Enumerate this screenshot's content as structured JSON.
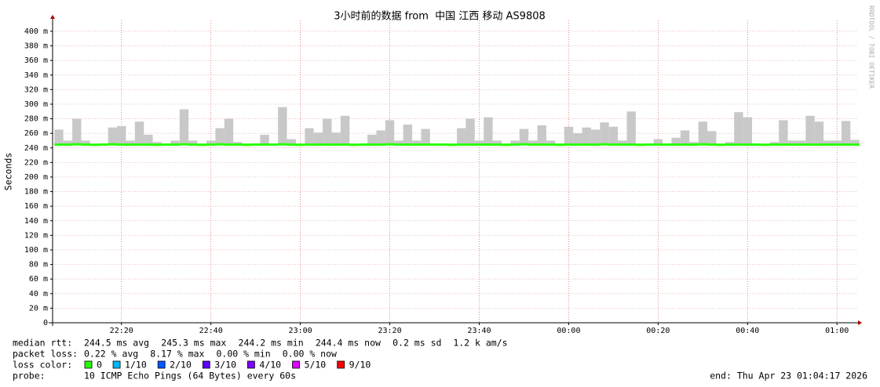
{
  "chart_data": {
    "type": "smokeping",
    "title": "3小时前的数据 from  中国 江西 移动 AS9808",
    "y_label": "Seconds",
    "watermark": "RRDTOOL / TOBI OETIKER",
    "ylim": [
      0,
      0.415
    ],
    "yticks": [
      {
        "value": 0,
        "label": "0"
      },
      {
        "value": 0.02,
        "label": "20 m"
      },
      {
        "value": 0.04,
        "label": "40 m"
      },
      {
        "value": 0.06,
        "label": "60 m"
      },
      {
        "value": 0.08,
        "label": "80 m"
      },
      {
        "value": 0.1,
        "label": "100 m"
      },
      {
        "value": 0.12,
        "label": "120 m"
      },
      {
        "value": 0.14,
        "label": "140 m"
      },
      {
        "value": 0.16,
        "label": "160 m"
      },
      {
        "value": 0.18,
        "label": "180 m"
      },
      {
        "value": 0.2,
        "label": "200 m"
      },
      {
        "value": 0.22,
        "label": "220 m"
      },
      {
        "value": 0.24,
        "label": "240 m"
      },
      {
        "value": 0.26,
        "label": "260 m"
      },
      {
        "value": 0.28,
        "label": "280 m"
      },
      {
        "value": 0.3,
        "label": "300 m"
      },
      {
        "value": 0.32,
        "label": "320 m"
      },
      {
        "value": 0.34,
        "label": "340 m"
      },
      {
        "value": 0.36,
        "label": "360 m"
      },
      {
        "value": 0.38,
        "label": "380 m"
      },
      {
        "value": 0.4,
        "label": "400 m"
      }
    ],
    "xlim": [
      1324.6,
      1504.7
    ],
    "xticks": [
      {
        "value": 1340,
        "label": "22:20"
      },
      {
        "value": 1360,
        "label": "22:40"
      },
      {
        "value": 1380,
        "label": "23:00"
      },
      {
        "value": 1400,
        "label": "23:20"
      },
      {
        "value": 1420,
        "label": "23:40"
      },
      {
        "value": 1440,
        "label": "00:00"
      },
      {
        "value": 1460,
        "label": "00:20"
      },
      {
        "value": 1480,
        "label": "00:40"
      },
      {
        "value": 1500,
        "label": "01:00"
      }
    ],
    "grid": true,
    "x": [
      1325,
      1327,
      1329,
      1331,
      1333,
      1335,
      1337,
      1339,
      1341,
      1343,
      1345,
      1347,
      1349,
      1351,
      1353,
      1355,
      1357,
      1359,
      1361,
      1363,
      1365,
      1367,
      1369,
      1371,
      1373,
      1375,
      1377,
      1379,
      1381,
      1383,
      1385,
      1387,
      1389,
      1391,
      1393,
      1395,
      1397,
      1399,
      1401,
      1403,
      1405,
      1407,
      1409,
      1411,
      1413,
      1415,
      1417,
      1419,
      1421,
      1423,
      1425,
      1427,
      1429,
      1431,
      1433,
      1435,
      1437,
      1439,
      1441,
      1443,
      1445,
      1447,
      1449,
      1451,
      1453,
      1455,
      1457,
      1459,
      1461,
      1463,
      1465,
      1467,
      1469,
      1471,
      1473,
      1475,
      1477,
      1479,
      1481,
      1483,
      1485,
      1487,
      1489,
      1491,
      1493,
      1495,
      1497,
      1499,
      1501,
      1503
    ],
    "smoke": {
      "color": "#c8c8c8",
      "values": [
        0.265,
        0.25,
        0.28,
        0.25,
        0.246,
        0.246,
        0.268,
        0.27,
        0.25,
        0.276,
        0.258,
        0.248,
        0.246,
        0.25,
        0.293,
        0.25,
        0.246,
        0.25,
        0.267,
        0.28,
        0.248,
        0.246,
        0.246,
        0.258,
        0.246,
        0.296,
        0.252,
        0.246,
        0.267,
        0.261,
        0.28,
        0.261,
        0.284,
        0.246,
        0.246,
        0.258,
        0.264,
        0.278,
        0.25,
        0.272,
        0.25,
        0.266,
        0.246,
        0.246,
        0.246,
        0.267,
        0.28,
        0.25,
        0.282,
        0.25,
        0.246,
        0.25,
        0.266,
        0.25,
        0.271,
        0.25,
        0.246,
        0.269,
        0.26,
        0.268,
        0.265,
        0.275,
        0.269,
        0.25,
        0.29,
        0.246,
        0.246,
        0.252,
        0.246,
        0.254,
        0.264,
        0.248,
        0.276,
        0.263,
        0.246,
        0.248,
        0.289,
        0.282,
        0.246,
        0.246,
        0.248,
        0.278,
        0.25,
        0.25,
        0.284,
        0.276,
        0.25,
        0.25,
        0.277,
        0.251
      ]
    },
    "series": [
      {
        "name": "median rtt:",
        "color": "#26ff00",
        "values": [
          0.2445,
          0.2445,
          0.2448,
          0.2445,
          0.2442,
          0.2445,
          0.2448,
          0.2445,
          0.2445,
          0.2445,
          0.2445,
          0.2442,
          0.2445,
          0.2445,
          0.2448,
          0.2445,
          0.2442,
          0.2445,
          0.2448,
          0.2445,
          0.2445,
          0.2442,
          0.2445,
          0.2445,
          0.2445,
          0.2448,
          0.2445,
          0.2442,
          0.2445,
          0.2445,
          0.2445,
          0.2445,
          0.2445,
          0.2442,
          0.2445,
          0.2445,
          0.2445,
          0.2448,
          0.2445,
          0.2445,
          0.2445,
          0.2445,
          0.2445,
          0.2445,
          0.2442,
          0.2445,
          0.2445,
          0.2445,
          0.2445,
          0.2445,
          0.2442,
          0.2445,
          0.2448,
          0.2445,
          0.2445,
          0.2445,
          0.2442,
          0.2445,
          0.2445,
          0.2445,
          0.2445,
          0.2448,
          0.2445,
          0.2445,
          0.2445,
          0.2442,
          0.2445,
          0.2445,
          0.2445,
          0.2445,
          0.2445,
          0.2445,
          0.2448,
          0.2445,
          0.2442,
          0.2445,
          0.2445,
          0.2445,
          0.2445,
          0.2442,
          0.2445,
          0.2445,
          0.2445,
          0.2445,
          0.2445,
          0.2445,
          0.2445,
          0.2445,
          0.2445,
          0.2445
        ]
      }
    ],
    "stats": [
      {
        "label": "median rtt:",
        "items": [
          "244.5 ms avg",
          "245.3 ms max",
          "244.2 ms min",
          "244.4 ms now",
          "0.2 ms sd",
          "1.2 k am/s"
        ]
      },
      {
        "label": "packet loss:",
        "items": [
          "0.22 % avg",
          "8.17 % max",
          "0.00 % min",
          "0.00 % now"
        ]
      }
    ],
    "loss_legend": {
      "label": "loss color:",
      "entries": [
        {
          "name": "0",
          "color": "#26ff00"
        },
        {
          "name": "1/10",
          "color": "#00b8ff"
        },
        {
          "name": "2/10",
          "color": "#0059ff"
        },
        {
          "name": "3/10",
          "color": "#5e00ff"
        },
        {
          "name": "4/10",
          "color": "#7e00ff"
        },
        {
          "name": "5/10",
          "color": "#dd00ff"
        },
        {
          "name": "9/10",
          "color": "#ff0000"
        }
      ]
    },
    "probe": {
      "label": "probe:",
      "text": "10 ICMP Echo Pings (64 Bytes) every 60s"
    },
    "end": "end: Thu Apr 23 01:04:17 2026"
  }
}
